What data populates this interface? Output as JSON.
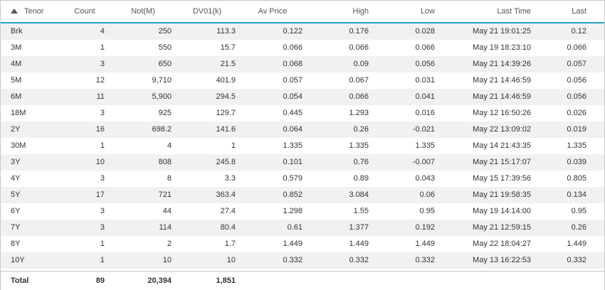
{
  "columns": [
    {
      "label": "Tenor",
      "sort": "ascending"
    },
    {
      "label": "Count"
    },
    {
      "label": "Not(M)"
    },
    {
      "label": "DV01(k)"
    },
    {
      "label": "Av Price"
    },
    {
      "label": "High"
    },
    {
      "label": "Low"
    },
    {
      "label": "Last Time"
    },
    {
      "label": "Last"
    }
  ],
  "rows": [
    [
      "Brk",
      "4",
      "250",
      "113.3",
      "0.122",
      "0.176",
      "0.028",
      "May 21 19:01:25",
      "0.12"
    ],
    [
      "3M",
      "1",
      "550",
      "15.7",
      "0.066",
      "0.066",
      "0.066",
      "May 19 18:23:10",
      "0.066"
    ],
    [
      "4M",
      "3",
      "650",
      "21.5",
      "0.068",
      "0.09",
      "0.056",
      "May 21 14:39:26",
      "0.057"
    ],
    [
      "5M",
      "12",
      "9,710",
      "401.9",
      "0.057",
      "0.067",
      "0.031",
      "May 21 14:46:59",
      "0.056"
    ],
    [
      "6M",
      "11",
      "5,900",
      "294.5",
      "0.054",
      "0.066",
      "0.041",
      "May 21 14:46:59",
      "0.056"
    ],
    [
      "18M",
      "3",
      "925",
      "129.7",
      "0.445",
      "1.293",
      "0.016",
      "May 12 16:50:26",
      "0.026"
    ],
    [
      "2Y",
      "16",
      "698.2",
      "141.6",
      "0.064",
      "0.26",
      "-0.021",
      "May 22 13:09:02",
      "0.019"
    ],
    [
      "30M",
      "1",
      "4",
      "1",
      "1.335",
      "1.335",
      "1.335",
      "May 14 21:43:35",
      "1.335"
    ],
    [
      "3Y",
      "10",
      "808",
      "245.8",
      "0.101",
      "0.76",
      "-0.007",
      "May 21 15:17:07",
      "0.039"
    ],
    [
      "4Y",
      "3",
      "8",
      "3.3",
      "0.579",
      "0.89",
      "0.043",
      "May 15 17:39:56",
      "0.805"
    ],
    [
      "5Y",
      "17",
      "721",
      "363.4",
      "0.852",
      "3.084",
      "0.06",
      "May 21 19:58:35",
      "0.134"
    ],
    [
      "6Y",
      "3",
      "44",
      "27.4",
      "1.298",
      "1.55",
      "0.95",
      "May 19 14:14:00",
      "0.95"
    ],
    [
      "7Y",
      "3",
      "114",
      "80.4",
      "0.61",
      "1.377",
      "0.192",
      "May 21 12:59:15",
      "0.26"
    ],
    [
      "8Y",
      "1",
      "2",
      "1.7",
      "1.449",
      "1.449",
      "1.449",
      "May 22 18:04:27",
      "1.449"
    ],
    [
      "10Y",
      "1",
      "10",
      "10",
      "0.332",
      "0.332",
      "0.332",
      "May 13 16:22:53",
      "0.332"
    ]
  ],
  "total": {
    "label": "Total",
    "count": "89",
    "notional": "20,394",
    "dv01": "1,851"
  },
  "colors": {
    "header_border": "#27a0c8",
    "row_alt": "#f1f1f1",
    "grid_border": "#c8c8c8"
  },
  "icons": {
    "sort": "sort-ascending-icon"
  }
}
